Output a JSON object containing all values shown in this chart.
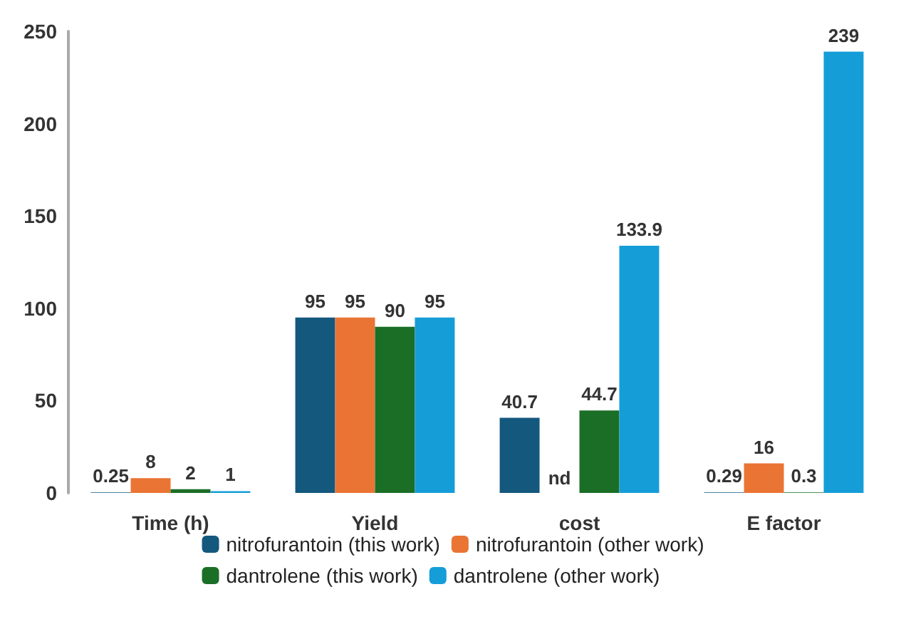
{
  "chart_data": {
    "type": "bar",
    "categories": [
      "Time (h)",
      "Yield",
      "cost",
      "E factor"
    ],
    "series": [
      {
        "name": "nitrofurantoin (this work)",
        "color": "#14587e",
        "values": [
          0.25,
          95,
          40.7,
          0.29
        ],
        "value_labels": [
          "0.25",
          "95",
          "40.7",
          "0.29"
        ]
      },
      {
        "name": "nitrofurantoin (other work)",
        "color": "#ea7434",
        "values": [
          8,
          95,
          null,
          16
        ],
        "value_labels": [
          "8",
          "95",
          null,
          "16"
        ]
      },
      {
        "name": "dantrolene (this work)",
        "color": "#1b6e26",
        "values": [
          2,
          90,
          44.7,
          0.3
        ],
        "value_labels": [
          "2",
          "90",
          "44.7",
          "0.3"
        ]
      },
      {
        "name": "dantrolene (other work)",
        "color": "#159dd8",
        "values": [
          1,
          95,
          133.9,
          239
        ],
        "value_labels": [
          "1",
          "95",
          "133.9",
          "239"
        ]
      }
    ],
    "ylim": [
      0,
      250
    ],
    "yticks": [
      0,
      50,
      100,
      150,
      200,
      250
    ],
    "grid": false,
    "legend": "bottom",
    "annotations": [
      {
        "text": "nd",
        "x": "cost",
        "y": 0
      }
    ]
  }
}
